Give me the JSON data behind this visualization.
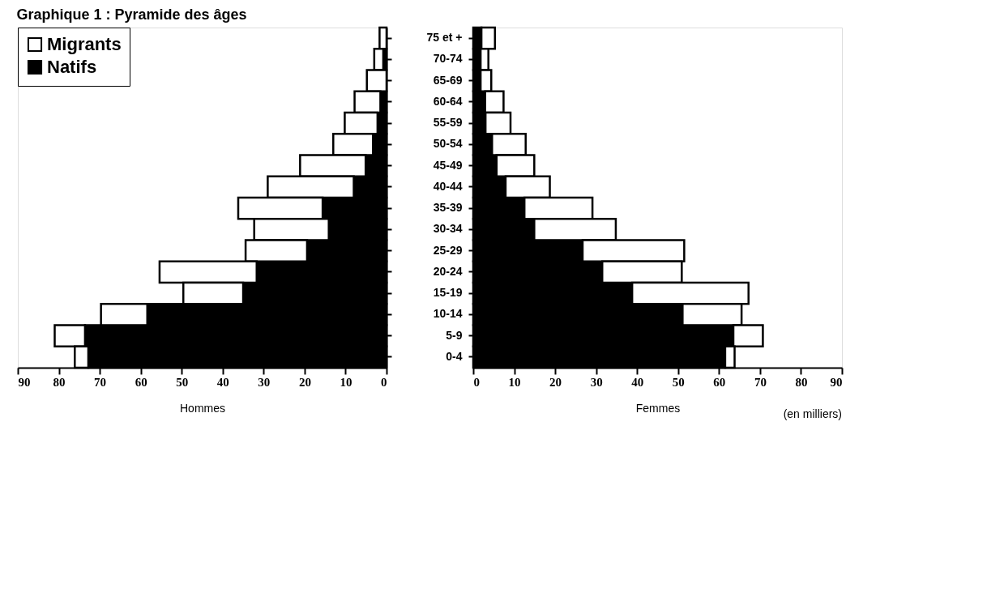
{
  "chart_data": [
    {
      "type": "bar",
      "title": "Graphique 1 : Pyramide des âges",
      "orientation": "horizontal",
      "stacked": true,
      "xlabel": "Hommes",
      "categories": [
        null,
        null,
        null,
        null,
        null,
        null,
        null,
        null,
        null,
        null,
        null,
        null,
        null,
        null,
        null,
        null
      ],
      "series": [
        {
          "name": "Natifs",
          "color": "#000000",
          "values": [
            null,
            0.8,
            null,
            1.5,
            2.2,
            3.3,
            5.1,
            8,
            15.6,
            14.1,
            19.4,
            31.7,
            35,
            58.4,
            73.6,
            72.8
          ]
        },
        {
          "name": "Migrants",
          "color": "#ffffff",
          "values": [
            1.7,
            2.2,
            4.8,
            6.3,
            8,
            9.7,
            16,
            21,
            20.6,
            18.2,
            15,
            23.7,
            14.6,
            11.3,
            7.4,
            3.3
          ]
        }
      ],
      "xlim": [
        90,
        0
      ],
      "xticks": [
        90,
        80,
        70,
        60,
        50,
        40,
        30,
        20,
        10,
        0
      ],
      "tick_labels": "x",
      "legend": "top left",
      "grid": false
    },
    {
      "type": "bar",
      "orientation": "horizontal",
      "stacked": true,
      "xlabel": "Femmes",
      "annotations": [
        "(en milliers)"
      ],
      "categories": [
        "75 et +",
        "70-74",
        "65-69",
        "60-64",
        "55-59",
        "50-54",
        "45-49",
        "40-44",
        "35-39",
        "30-34",
        "25-29",
        "20-24",
        "15-19",
        "10-14",
        "5-9",
        "0-4"
      ],
      "series": [
        {
          "color": "#000000",
          "values": [
            2,
            1.8,
            1.8,
            2.9,
            3,
            4.6,
            5.7,
            7.9,
            12.5,
            14.9,
            26.7,
            31.5,
            38.8,
            51.1,
            63.5,
            61.5
          ]
        },
        {
          "color": "#ffffff",
          "values": [
            3.3,
            1.9,
            2.6,
            4.5,
            6.1,
            8.2,
            9.2,
            10.8,
            16.6,
            19.9,
            24.8,
            19.4,
            28.4,
            14.4,
            7.2,
            2.3
          ]
        }
      ],
      "xlim": [
        0,
        90
      ],
      "xticks": [
        0,
        10,
        20,
        30,
        40,
        50,
        60,
        70,
        80,
        90
      ],
      "legend": false,
      "grid": false
    }
  ]
}
